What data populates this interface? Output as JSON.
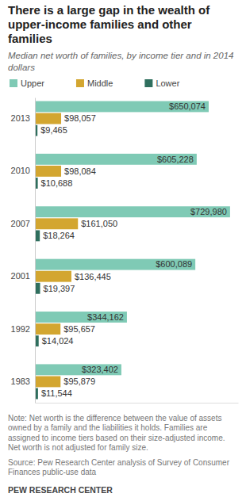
{
  "chart_data": {
    "type": "bar",
    "orientation": "horizontal",
    "title": "There is a large gap in the wealth of upper-income families and other families",
    "subtitle": "Median net worth of families, by income tier and in 2014 dollars",
    "categories": [
      "2013",
      "2010",
      "2007",
      "2001",
      "1992",
      "1983"
    ],
    "series": [
      {
        "name": "Upper",
        "color": "#7fcab5",
        "values": [
          650074,
          605228,
          729980,
          600089,
          344162,
          323402
        ],
        "value_labels": [
          "$650,074",
          "$605,228",
          "$729,980",
          "$600,089",
          "$344,162",
          "$323,402"
        ]
      },
      {
        "name": "Middle",
        "color": "#d3a630",
        "values": [
          98057,
          98084,
          161050,
          136445,
          95657,
          95879
        ],
        "value_labels": [
          "$98,057",
          "$98,084",
          "$161,050",
          "$136,445",
          "$95,657",
          "$95,879"
        ]
      },
      {
        "name": "Lower",
        "color": "#2f6f5e",
        "values": [
          9465,
          10688,
          18264,
          19397,
          14024,
          11544
        ],
        "value_labels": [
          "$9,465",
          "$10,688",
          "$18,264",
          "$19,397",
          "$14,024",
          "$11,544"
        ]
      }
    ],
    "ylim": [
      0,
      760000
    ],
    "data_labels": true,
    "tick_labels": "x",
    "legend": "top",
    "note": "Note: Net worth is the difference between the value of assets owned by a family and the liabilities it holds. Families are assigned to income tiers based on their size-adjusted income. Net worth is not adjusted for family size.",
    "source": "Source: Pew Research Center analysis of Survey of Consumer Finances public-use data",
    "branding": "PEW RESEARCH CENTER"
  }
}
